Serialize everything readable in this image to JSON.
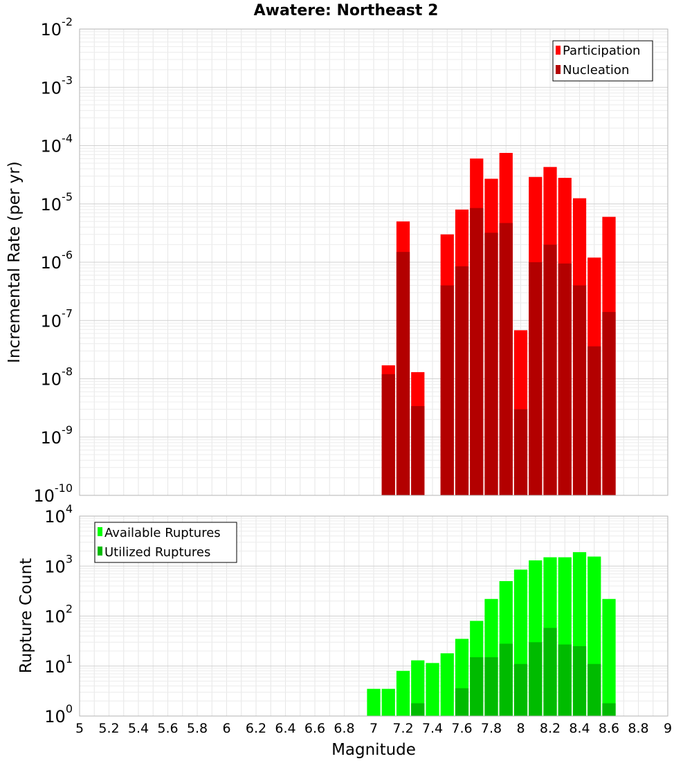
{
  "chart_data": [
    {
      "type": "bar",
      "title": "Awatere: Northeast 2",
      "xlabel": "",
      "ylabel": "Incremental Rate (per yr)",
      "y_scale": "log",
      "ylim_exp": [
        -10,
        -2
      ],
      "xlim": [
        5,
        9
      ],
      "bin_width": 0.1,
      "grid": true,
      "legend_position": "top-right",
      "x": [
        7.1,
        7.2,
        7.3,
        7.5,
        7.6,
        7.7,
        7.8,
        7.9,
        8.0,
        8.1,
        8.2,
        8.3,
        8.4,
        8.5,
        8.6
      ],
      "series": [
        {
          "name": "Participation",
          "color": "#ff0000",
          "values": [
            1.7e-08,
            5e-06,
            1.3e-08,
            3e-06,
            8e-06,
            6e-05,
            2.7e-05,
            7.5e-05,
            6.8e-08,
            2.9e-05,
            4.3e-05,
            2.8e-05,
            1.25e-05,
            1.2e-06,
            6e-06
          ]
        },
        {
          "name": "Nucleation",
          "color": "#b30000",
          "values": [
            1.2e-08,
            1.5e-06,
            3.4e-09,
            4e-07,
            8.5e-07,
            8.5e-06,
            3.2e-06,
            4.7e-06,
            3e-09,
            1e-06,
            2e-06,
            9.5e-07,
            4e-07,
            3.6e-08,
            1.4e-07
          ]
        }
      ]
    },
    {
      "type": "bar",
      "title": "",
      "xlabel": "Magnitude",
      "ylabel": "Rupture Count",
      "y_scale": "log",
      "ylim_exp": [
        0,
        4
      ],
      "xlim": [
        5,
        9
      ],
      "bin_width": 0.1,
      "grid": true,
      "legend_position": "top-left",
      "x": [
        6.9,
        7.0,
        7.1,
        7.2,
        7.3,
        7.4,
        7.5,
        7.6,
        7.7,
        7.8,
        7.9,
        8.0,
        8.1,
        8.2,
        8.3,
        8.4,
        8.5,
        8.6
      ],
      "series": [
        {
          "name": "Available Ruptures",
          "color": "#00ff00",
          "values": [
            1,
            3.5,
            3.5,
            8,
            13,
            11.5,
            18,
            35,
            80,
            220,
            500,
            850,
            1300,
            1500,
            1500,
            1900,
            1550,
            220
          ]
        },
        {
          "name": "Utilized Ruptures",
          "color": "#00bb00",
          "values": [
            0,
            1,
            1,
            1,
            1.8,
            1,
            1,
            3.6,
            15,
            15,
            28,
            11,
            30,
            58,
            27,
            25,
            11,
            1.8
          ]
        }
      ],
      "x_ticks": [
        "5",
        "5.2",
        "5.4",
        "5.6",
        "5.8",
        "6",
        "6.2",
        "6.4",
        "6.6",
        "6.8",
        "7",
        "7.2",
        "7.4",
        "7.6",
        "7.8",
        "8",
        "8.2",
        "8.4",
        "8.6",
        "8.8",
        "9"
      ]
    }
  ]
}
